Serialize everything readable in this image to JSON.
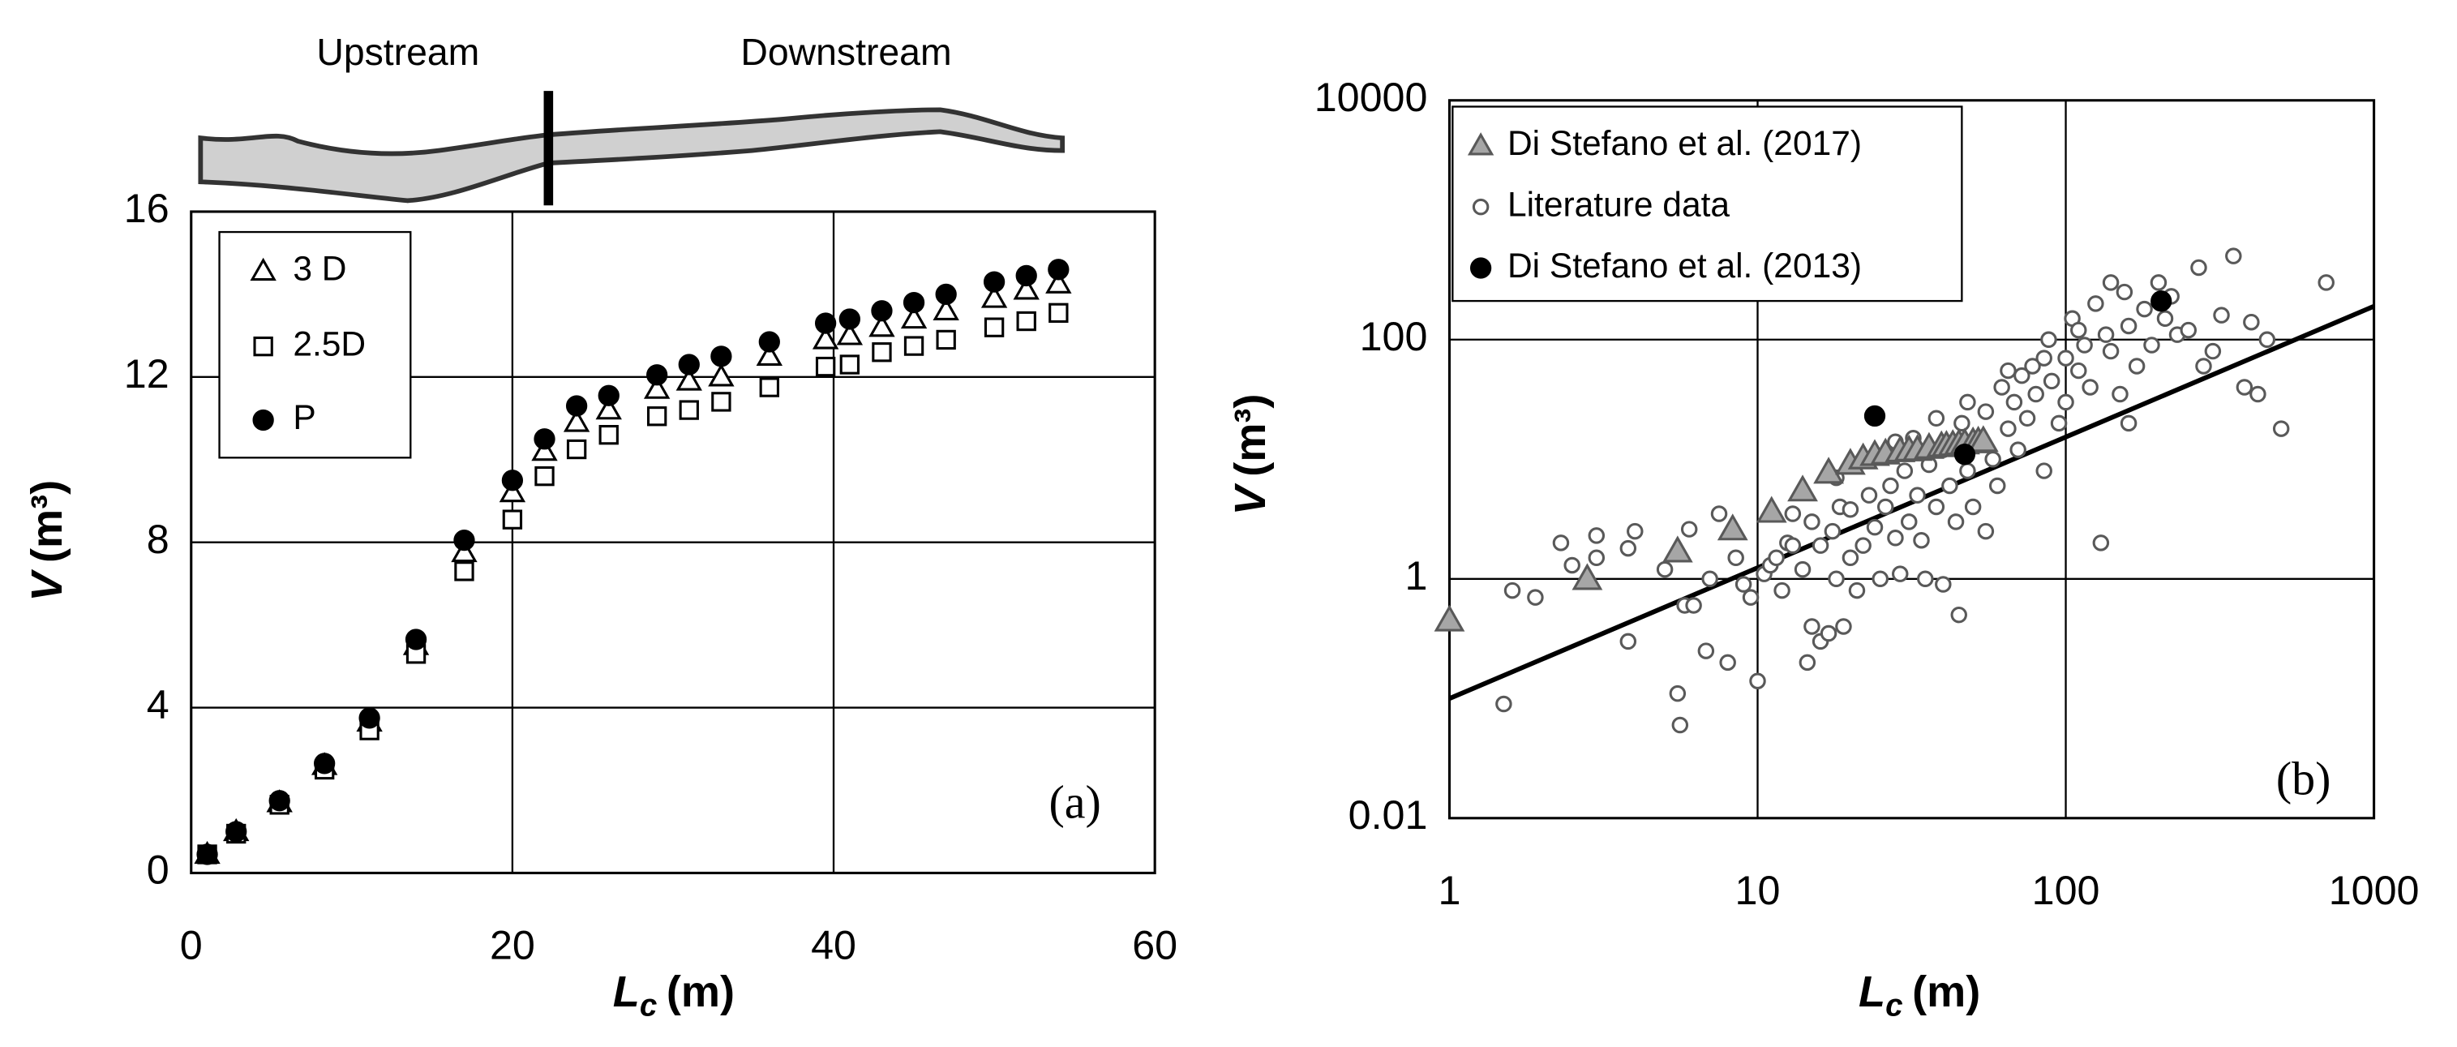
{
  "chart_data": [
    {
      "type": "scatter",
      "xlabel": {
        "symbol": "L",
        "subscript": "c",
        "unit": "(m)"
      },
      "ylabel": {
        "symbol": "V",
        "unit": "(m³)"
      },
      "annotations": [
        "(a)",
        "Upstream",
        "Downstream"
      ],
      "xlim": [
        0,
        60
      ],
      "ylim": [
        0,
        16
      ],
      "xticks": [
        0,
        20,
        40,
        60
      ],
      "yticks": [
        0,
        4,
        8,
        12,
        16
      ],
      "grid": true,
      "log": false,
      "legend": "upper-left",
      "series": [
        {
          "name": "3 D",
          "marker": "triangle",
          "color": "#000000",
          "fill": "#ffffff",
          "x": [
            1,
            2.8,
            5.5,
            8.3,
            11.1,
            14,
            17,
            20,
            22,
            24,
            26,
            29,
            31,
            33,
            36,
            39.5,
            41,
            43,
            45,
            47,
            50,
            52,
            54
          ],
          "values": [
            0.45,
            1.0,
            1.7,
            2.6,
            3.65,
            5.5,
            7.75,
            9.2,
            10.2,
            10.9,
            11.2,
            11.7,
            11.9,
            12.0,
            12.5,
            12.9,
            13.0,
            13.2,
            13.4,
            13.6,
            13.9,
            14.1,
            14.25
          ]
        },
        {
          "name": "2.5D",
          "marker": "square",
          "color": "#000000",
          "fill": "#ffffff",
          "x": [
            1,
            2.8,
            5.5,
            8.3,
            11.1,
            14,
            17,
            20,
            22,
            24,
            26,
            29,
            31,
            33,
            36,
            39.5,
            41,
            43,
            45,
            47,
            50,
            52,
            54
          ],
          "values": [
            0.45,
            0.95,
            1.65,
            2.5,
            3.45,
            5.3,
            7.3,
            8.55,
            9.6,
            10.25,
            10.6,
            11.05,
            11.2,
            11.4,
            11.75,
            12.25,
            12.3,
            12.6,
            12.75,
            12.9,
            13.2,
            13.35,
            13.55
          ]
        },
        {
          "name": "P",
          "marker": "circle",
          "color": "#000000",
          "fill": "#000000",
          "x": [
            1,
            2.8,
            5.5,
            8.3,
            11.1,
            14,
            17,
            20,
            22,
            24,
            26,
            29,
            31,
            33,
            36,
            39.5,
            41,
            43,
            45,
            47,
            50,
            52,
            54
          ],
          "values": [
            0.45,
            1.0,
            1.75,
            2.65,
            3.75,
            5.65,
            8.05,
            9.5,
            10.5,
            11.3,
            11.55,
            12.05,
            12.3,
            12.5,
            12.85,
            13.3,
            13.4,
            13.6,
            13.8,
            14.0,
            14.3,
            14.45,
            14.6
          ]
        }
      ]
    },
    {
      "type": "scatter",
      "xlabel": {
        "symbol": "L",
        "subscript": "c",
        "unit": "(m)"
      },
      "ylabel": {
        "symbol": "V",
        "unit": "(m³)"
      },
      "annotations": [
        "(b)"
      ],
      "xlim": [
        1,
        1000
      ],
      "ylim": [
        0.01,
        10000
      ],
      "xticks": [
        1,
        10,
        100,
        1000
      ],
      "yticks": [
        0.01,
        1,
        100,
        10000
      ],
      "grid": true,
      "log": true,
      "legend": "upper-left",
      "series": [
        {
          "name": "Di Stefano et al. (2017)",
          "marker": "triangle",
          "color": "#595959",
          "fill": "#a6a6a6",
          "x": [
            1,
            2.8,
            5.5,
            8.3,
            11.1,
            14,
            17,
            20,
            22,
            24,
            26,
            29,
            31,
            33,
            36,
            39.5,
            41,
            43,
            45,
            47,
            50,
            52,
            54
          ],
          "values": [
            0.45,
            1.0,
            1.7,
            2.6,
            3.65,
            5.5,
            7.75,
            9.2,
            10.2,
            10.9,
            11.2,
            11.7,
            11.9,
            12.0,
            12.5,
            12.9,
            13.0,
            13.2,
            13.4,
            13.6,
            13.9,
            14.1,
            14.25
          ]
        },
        {
          "name": "Literature data",
          "marker": "circle-small",
          "color": "#595959",
          "fill": "#ffffff",
          "x": [
            1.5,
            1.6,
            1.9,
            2.3,
            2.5,
            3,
            3,
            3.8,
            3.8,
            4,
            5,
            5.5,
            5.6,
            5.8,
            6,
            6.2,
            6.8,
            7,
            7.5,
            8,
            8.5,
            9,
            9.5,
            10,
            10.5,
            11,
            11.5,
            12,
            12.5,
            13,
            13,
            14,
            14.5,
            15,
            15,
            16,
            16,
            17,
            17.5,
            18,
            18.5,
            19,
            20,
            20,
            21,
            22,
            23,
            24,
            25,
            26,
            27,
            28,
            29,
            30,
            31,
            32,
            33,
            34,
            35,
            36,
            38,
            40,
            40,
            42,
            44,
            45,
            46,
            48,
            50,
            52,
            55,
            55,
            58,
            60,
            62,
            65,
            68,
            70,
            72,
            75,
            78,
            80,
            85,
            88,
            90,
            95,
            100,
            100,
            105,
            110,
            115,
            120,
            125,
            130,
            135,
            140,
            150,
            155,
            160,
            170,
            180,
            190,
            200,
            210,
            230,
            250,
            270,
            300,
            320,
            350,
            380,
            400,
            450,
            500,
            700,
            420,
            280,
            220,
            160,
            140,
            110,
            85,
            65,
            48,
            38,
            28,
            22,
            18
          ],
          "values": [
            0.09,
            0.8,
            0.7,
            2,
            1.3,
            2.3,
            1.5,
            1.8,
            0.3,
            2.5,
            1.2,
            0.11,
            0.06,
            0.6,
            2.6,
            0.6,
            0.25,
            1,
            3.5,
            0.2,
            1.5,
            0.9,
            0.7,
            0.14,
            1.1,
            1.3,
            1.5,
            0.8,
            2,
            3.5,
            1.9,
            1.2,
            0.2,
            0.4,
            3,
            1.9,
            0.3,
            0.35,
            2.5,
            1,
            4,
            0.4,
            1.5,
            3.8,
            0.8,
            1.9,
            5,
            2.7,
            1.0,
            4,
            6,
            2.2,
            1.1,
            8,
            3,
            15,
            5,
            2.1,
            1.0,
            9,
            4,
            0.9,
            12,
            6,
            3,
            0.5,
            20,
            8,
            4,
            14,
            2.5,
            25,
            10,
            6,
            40,
            18,
            30,
            12,
            50,
            22,
            60,
            35,
            8,
            100,
            45,
            20,
            70,
            30,
            150,
            55,
            90,
            40,
            200,
            2,
            110,
            80,
            35,
            250,
            130,
            60,
            180,
            90,
            300,
            150,
            110,
            120,
            400,
            80,
            160,
            500,
            40,
            140,
            100,
            18,
            300,
            35,
            60,
            230,
            20,
            300,
            120,
            70,
            55,
            30,
            22,
            14,
            10,
            7
          ]
        },
        {
          "name": "Di Stefano et al. (2013)",
          "marker": "circle",
          "color": "#000000",
          "fill": "#000000",
          "x": [
            24,
            47,
            204
          ],
          "values": [
            23,
            11,
            210
          ]
        }
      ],
      "fit_line": {
        "x": [
          1,
          1000
        ],
        "values": [
          0.1,
          190
        ],
        "color": "#000000"
      }
    }
  ]
}
